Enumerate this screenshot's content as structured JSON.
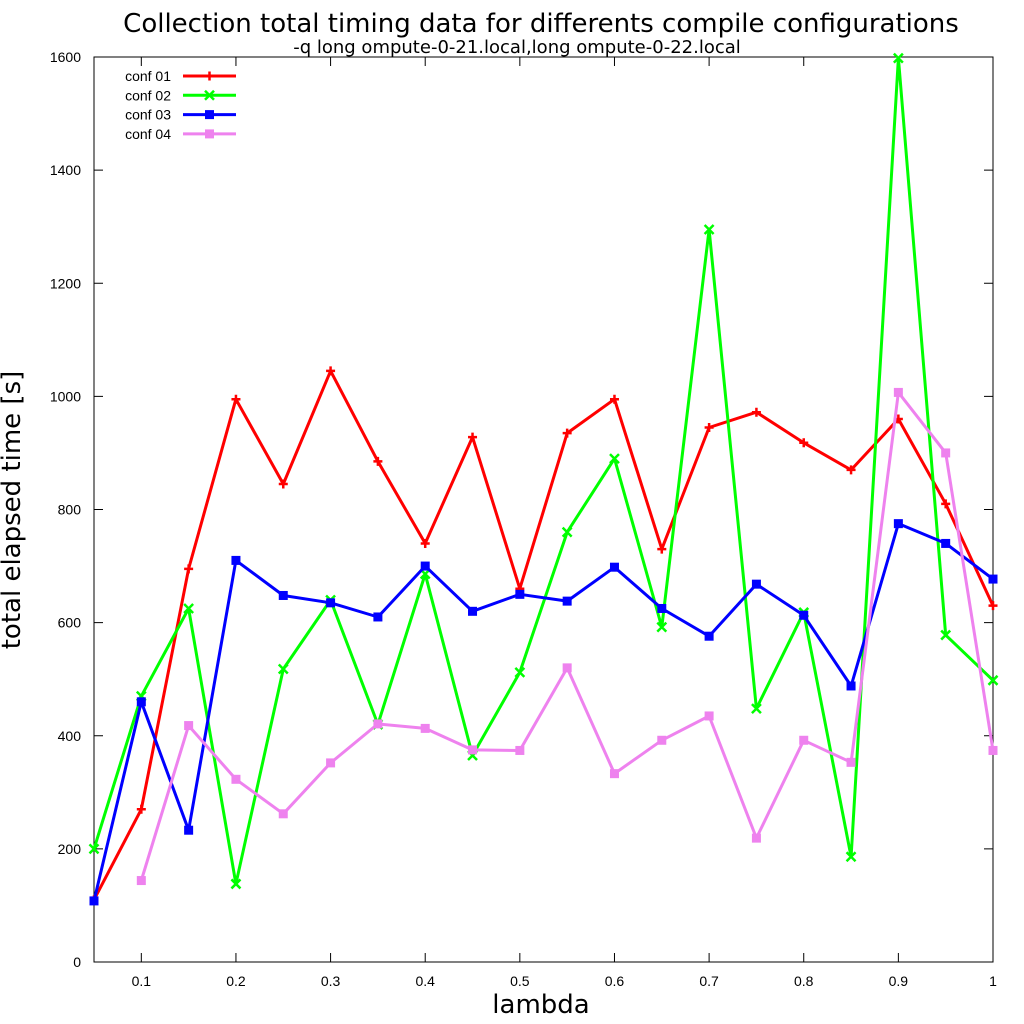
{
  "chart_data": {
    "type": "line",
    "title": "Collection total timing data for differents compile configurations",
    "subtitle": "-q long ompute-0-21.local,long ompute-0-22.local",
    "xlabel": "lambda",
    "ylabel": "total elapsed time [s]",
    "xlim": [
      0.05,
      1.0
    ],
    "ylim": [
      0,
      1600
    ],
    "xticks": [
      0.1,
      0.2,
      0.3,
      0.4,
      0.5,
      0.6,
      0.7,
      0.8,
      0.9,
      1.0
    ],
    "xtick_labels": [
      "0.1",
      "0.2",
      "0.3",
      "0.4",
      "0.5",
      "0.6",
      "0.7",
      "0.8",
      "0.9",
      "1"
    ],
    "yticks": [
      0,
      200,
      400,
      600,
      800,
      1000,
      1200,
      1400,
      1600
    ],
    "ytick_labels": [
      "0",
      "200",
      "400",
      "600",
      "800",
      "1000",
      "1200",
      "1400",
      "1600"
    ],
    "grid": false,
    "legend_position": "top-left",
    "series": [
      {
        "name": "conf 01",
        "color": "#ff0000",
        "marker": "plus",
        "points": [
          [
            0.05,
            110
          ],
          [
            0.1,
            270
          ],
          [
            0.15,
            695
          ],
          [
            0.2,
            995
          ],
          [
            0.25,
            845
          ],
          [
            0.3,
            1045
          ],
          [
            0.35,
            885
          ],
          [
            0.4,
            740
          ],
          [
            0.45,
            928
          ],
          [
            0.5,
            660
          ],
          [
            0.55,
            935
          ],
          [
            0.6,
            995
          ],
          [
            0.65,
            730
          ],
          [
            0.7,
            945
          ],
          [
            0.75,
            972
          ],
          [
            0.8,
            918
          ],
          [
            0.85,
            870
          ],
          [
            0.9,
            960
          ],
          [
            0.95,
            810
          ],
          [
            1.0,
            630
          ]
        ]
      },
      {
        "name": "conf 02",
        "color": "#00ff00",
        "marker": "cross",
        "points": [
          [
            0.05,
            200
          ],
          [
            0.1,
            470
          ],
          [
            0.15,
            625
          ],
          [
            0.2,
            138
          ],
          [
            0.25,
            518
          ],
          [
            0.3,
            640
          ],
          [
            0.35,
            420
          ],
          [
            0.4,
            686
          ],
          [
            0.45,
            365
          ],
          [
            0.5,
            512
          ],
          [
            0.55,
            760
          ],
          [
            0.6,
            890
          ],
          [
            0.65,
            592
          ],
          [
            0.7,
            1295
          ],
          [
            0.75,
            448
          ],
          [
            0.8,
            618
          ],
          [
            0.85,
            186
          ],
          [
            0.9,
            1598
          ],
          [
            0.95,
            578
          ],
          [
            1.0,
            498
          ]
        ]
      },
      {
        "name": "conf 03",
        "color": "#0000ff",
        "marker": "square",
        "points": [
          [
            0.05,
            108
          ],
          [
            0.1,
            460
          ],
          [
            0.15,
            233
          ],
          [
            0.2,
            710
          ],
          [
            0.25,
            648
          ],
          [
            0.3,
            635
          ],
          [
            0.35,
            610
          ],
          [
            0.4,
            700
          ],
          [
            0.45,
            620
          ],
          [
            0.5,
            650
          ],
          [
            0.55,
            638
          ],
          [
            0.6,
            698
          ],
          [
            0.65,
            625
          ],
          [
            0.7,
            576
          ],
          [
            0.75,
            668
          ],
          [
            0.8,
            613
          ],
          [
            0.85,
            488
          ],
          [
            0.9,
            775
          ],
          [
            0.95,
            740
          ],
          [
            1.0,
            677
          ]
        ]
      },
      {
        "name": "conf 04",
        "color": "#ee82ee",
        "marker": "square",
        "points": [
          [
            0.1,
            144
          ],
          [
            0.15,
            418
          ],
          [
            0.2,
            323
          ],
          [
            0.25,
            262
          ],
          [
            0.3,
            352
          ],
          [
            0.35,
            421
          ],
          [
            0.4,
            413
          ],
          [
            0.45,
            375
          ],
          [
            0.5,
            374
          ],
          [
            0.55,
            520
          ],
          [
            0.6,
            333
          ],
          [
            0.65,
            392
          ],
          [
            0.7,
            435
          ],
          [
            0.75,
            219
          ],
          [
            0.8,
            392
          ],
          [
            0.85,
            353
          ],
          [
            0.9,
            1007
          ],
          [
            0.95,
            900
          ],
          [
            1.0,
            374
          ]
        ]
      }
    ]
  }
}
